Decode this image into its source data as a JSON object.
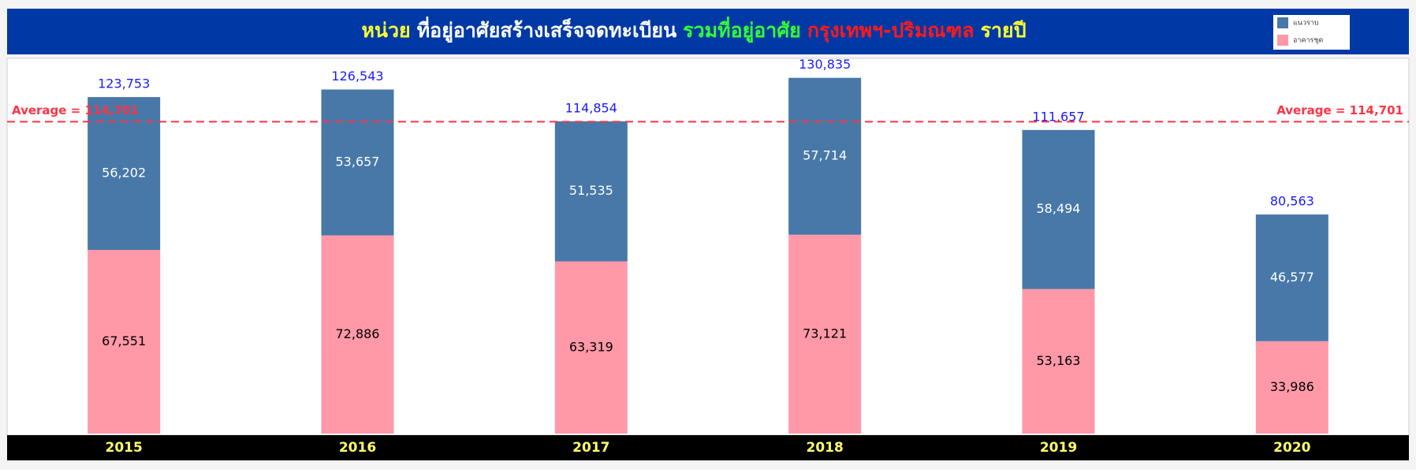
{
  "chart_data": {
    "type": "stacked_bar",
    "title_parts": [
      {
        "text": "หน่วย",
        "color": "#ffff33"
      },
      {
        "text": "ที่อยู่อาศัยสร้างเสร็จจดทะเบียน",
        "color": "#ffffff"
      },
      {
        "text": "รวมที่อยู่อาศัย",
        "color": "#33ff33"
      },
      {
        "text": "กรุงเทพฯ-ปริมณฑล",
        "color": "#ff1a1a"
      },
      {
        "text": "รายปี",
        "color": "#ffff33"
      }
    ],
    "categories": [
      "2015",
      "2016",
      "2017",
      "2018",
      "2019",
      "2020"
    ],
    "series": [
      {
        "name": "อาคารชุด",
        "color": "#ff99a8",
        "label_color": "#000000",
        "values": [
          67551,
          72886,
          63319,
          73121,
          53163,
          33986
        ],
        "value_labels": [
          "67,551",
          "72,886",
          "63,319",
          "73,121",
          "53,163",
          "33,986"
        ]
      },
      {
        "name": "แนวราบ",
        "color": "#4878a8",
        "label_color": "#ffffff",
        "values": [
          56202,
          53657,
          51535,
          57714,
          58494,
          46577
        ],
        "value_labels": [
          "56,202",
          "53,657",
          "51,535",
          "57,714",
          "58,494",
          "46,577"
        ]
      }
    ],
    "totals": [
      123753,
      126543,
      114854,
      130835,
      111657,
      80563
    ],
    "total_labels": [
      "123,753",
      "126,543",
      "114,854",
      "130,835",
      "111,657",
      "80,563"
    ],
    "total_color": "#1a1aff",
    "average": {
      "value": 114701,
      "label": "Average = 114,701",
      "color": "#ff3344"
    },
    "ylim": [
      0,
      138000
    ],
    "legend": "top-right"
  }
}
